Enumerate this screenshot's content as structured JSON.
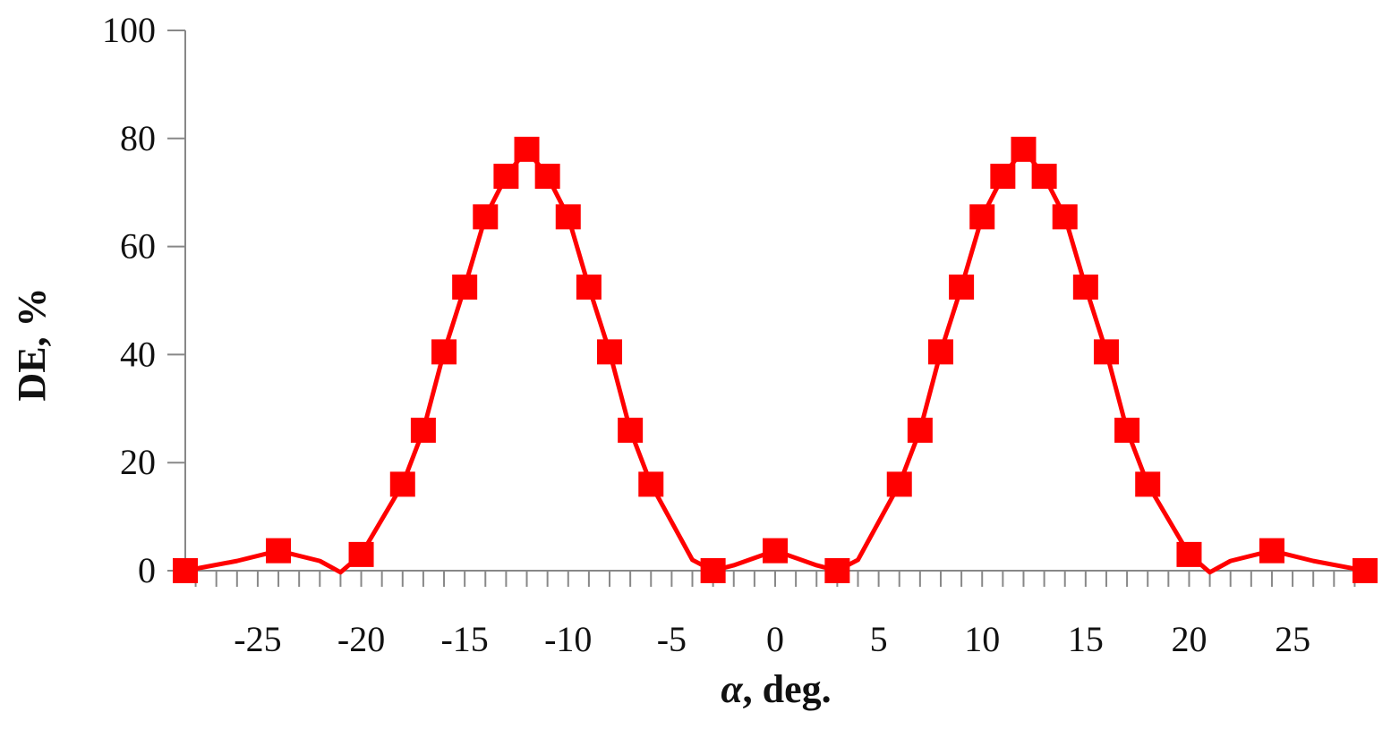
{
  "chart_data": {
    "type": "line",
    "xlabel_symbol": "α",
    "xlabel_rest": ", deg.",
    "ylabel": "DE, %",
    "xlim": [
      -28.5,
      28.5
    ],
    "ylim": [
      0,
      100
    ],
    "x_ticks": [
      -25,
      -20,
      -15,
      -10,
      -5,
      0,
      5,
      10,
      15,
      20,
      25
    ],
    "y_ticks": [
      0,
      20,
      40,
      60,
      80,
      100
    ],
    "x_minor_step": 1,
    "grid": false,
    "legend": "none",
    "series": [
      {
        "color": "#ff0000",
        "marker": "square",
        "x": [
          -28.5,
          -24,
          -20,
          -18,
          -17,
          -16,
          -15,
          -14,
          -13,
          -12,
          -11,
          -10,
          -9,
          -8,
          -7,
          -6,
          -3,
          0,
          3,
          6,
          7,
          8,
          9,
          10,
          11,
          12,
          13,
          14,
          15,
          16,
          17,
          18,
          20,
          24,
          28.5
        ],
        "y": [
          0,
          3.7,
          3,
          16,
          26,
          40.5,
          52.5,
          65.5,
          73,
          78,
          73,
          65.5,
          52.5,
          40.5,
          26,
          16,
          0,
          3.7,
          0,
          16,
          26,
          40.5,
          52.5,
          65.5,
          73,
          78,
          73,
          65.5,
          52.5,
          40.5,
          26,
          16,
          3,
          3.7,
          0
        ]
      }
    ],
    "curve": {
      "x": [
        -28.5,
        -26,
        -24,
        -22,
        -21,
        -20,
        -18,
        -17,
        -16,
        -15,
        -14,
        -13,
        -12,
        -11,
        -10,
        -9,
        -8,
        -7,
        -6,
        -4,
        -3,
        -2,
        0,
        2,
        3,
        4,
        6,
        7,
        8,
        9,
        10,
        11,
        12,
        13,
        14,
        15,
        16,
        17,
        18,
        20,
        21,
        22,
        24,
        26,
        28.5
      ],
      "y": [
        0,
        1.8,
        3.7,
        1.8,
        -0.3,
        3,
        16,
        26,
        40.5,
        52.5,
        65.5,
        73,
        78,
        73,
        65.5,
        52.5,
        40.5,
        26,
        16,
        2,
        0,
        1,
        3.7,
        1,
        0,
        2,
        16,
        26,
        40.5,
        52.5,
        65.5,
        73,
        78,
        73,
        65.5,
        52.5,
        40.5,
        26,
        16,
        3,
        -0.3,
        1.8,
        3.7,
        1.8,
        0
      ]
    }
  }
}
